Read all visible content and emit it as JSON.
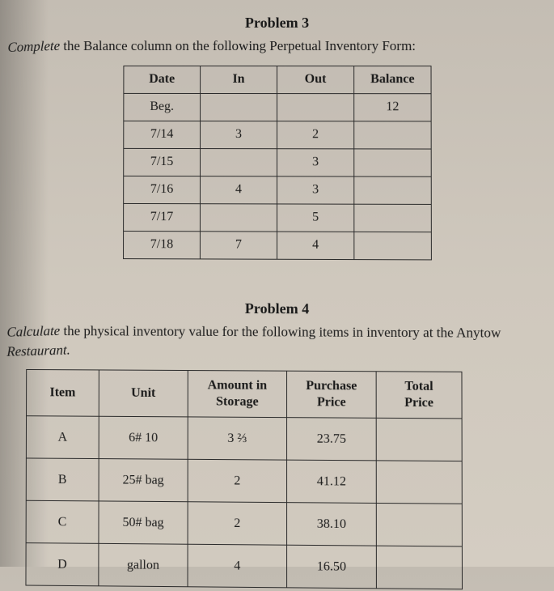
{
  "problem3": {
    "title": "Problem 3",
    "desc_lead": "Complete",
    "desc_rest": " the Balance column on the following Perpetual Inventory Form:",
    "headers": {
      "date": "Date",
      "in": "In",
      "out": "Out",
      "balance": "Balance"
    },
    "rows": [
      {
        "date": "Beg.",
        "in": "",
        "out": "",
        "balance": "12"
      },
      {
        "date": "7/14",
        "in": "3",
        "out": "2",
        "balance": ""
      },
      {
        "date": "7/15",
        "in": "",
        "out": "3",
        "balance": ""
      },
      {
        "date": "7/16",
        "in": "4",
        "out": "3",
        "balance": ""
      },
      {
        "date": "7/17",
        "in": "",
        "out": "5",
        "balance": ""
      },
      {
        "date": "7/18",
        "in": "7",
        "out": "4",
        "balance": ""
      }
    ]
  },
  "problem4": {
    "title": "Problem 4",
    "desc_lead1": "Calculate",
    "desc_mid": " the physical inventory value for the following items in inventory at the Anytow",
    "desc_lead2": "Restaurant.",
    "headers": {
      "item": "Item",
      "unit": "Unit",
      "amount1": "Amount in",
      "amount2": "Storage",
      "price1": "Purchase",
      "price2": "Price",
      "total1": "Total",
      "total2": "Price"
    },
    "rows": [
      {
        "item": "A",
        "unit": "6# 10",
        "amount": "3 ⅔",
        "price": "23.75",
        "total": ""
      },
      {
        "item": "B",
        "unit": "25# bag",
        "amount": "2",
        "price": "41.12",
        "total": ""
      },
      {
        "item": "C",
        "unit": "50# bag",
        "amount": "2",
        "price": "38.10",
        "total": ""
      },
      {
        "item": "D",
        "unit": "gallon",
        "amount": "4",
        "price": "16.50",
        "total": ""
      }
    ]
  },
  "style": {
    "background_top": "#c4bdb3",
    "background_bottom": "#d4cdc2",
    "border_color": "#2a2a2a",
    "text_color": "#1a1a1a",
    "title_fontsize": 18,
    "body_fontsize": 17,
    "cell_fontsize": 16,
    "font_family": "Georgia, Times New Roman, serif"
  }
}
